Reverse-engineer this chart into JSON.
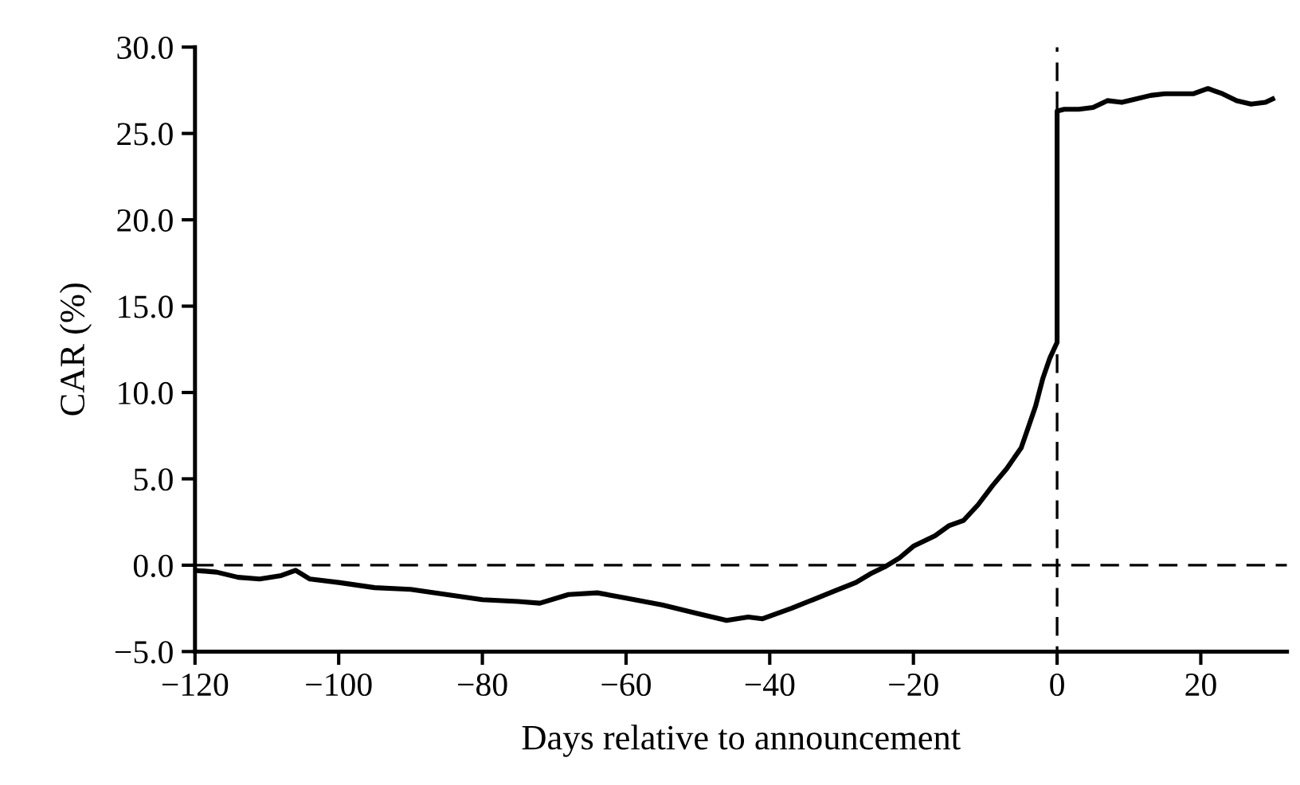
{
  "chart_data": {
    "type": "line",
    "xlabel": "Days relative to announcement",
    "ylabel": "CAR (%)",
    "x": [
      -120,
      -117,
      -114,
      -111,
      -108,
      -106,
      -104,
      -100,
      -95,
      -90,
      -85,
      -80,
      -75,
      -72,
      -68,
      -64,
      -60,
      -55,
      -50,
      -46,
      -43,
      -41,
      -37,
      -34,
      -31,
      -28,
      -26,
      -24,
      -22,
      -20,
      -17,
      -15,
      -13,
      -11,
      -9,
      -7,
      -5,
      -4,
      -3,
      -2,
      -1,
      0,
      0,
      1,
      3,
      5,
      7,
      9,
      11,
      13,
      15,
      17,
      19,
      21,
      23,
      25,
      27,
      29,
      30
    ],
    "series": [
      {
        "color": "#000000",
        "values": [
          -0.3,
          -0.4,
          -0.7,
          -0.8,
          -0.6,
          -0.3,
          -0.8,
          -1.0,
          -1.3,
          -1.4,
          -1.7,
          -2.0,
          -2.1,
          -2.2,
          -1.7,
          -1.6,
          -1.9,
          -2.3,
          -2.8,
          -3.2,
          -3.0,
          -3.1,
          -2.5,
          -2.0,
          -1.5,
          -1.0,
          -0.5,
          -0.1,
          0.4,
          1.1,
          1.7,
          2.3,
          2.6,
          3.5,
          4.6,
          5.6,
          6.8,
          8.0,
          9.2,
          10.8,
          12.0,
          12.9,
          26.3,
          26.4,
          26.4,
          26.5,
          26.9,
          26.8,
          27.0,
          27.2,
          27.3,
          27.3,
          27.3,
          27.6,
          27.3,
          26.9,
          26.7,
          26.8,
          27.0
        ]
      }
    ],
    "xlim": [
      -120,
      32
    ],
    "xticks": [
      {
        "value": -120,
        "label": "−120"
      },
      {
        "value": -100,
        "label": "−100"
      },
      {
        "value": -80,
        "label": "−80"
      },
      {
        "value": -60,
        "label": "−60"
      },
      {
        "value": -40,
        "label": "−40"
      },
      {
        "value": -20,
        "label": "−20"
      },
      0,
      20
    ],
    "ylim": [
      -5,
      30
    ],
    "yticks": [
      {
        "value": -5,
        "label": "−5.0"
      },
      {
        "value": 0,
        "label": "0.0"
      },
      {
        "value": 5,
        "label": "5.0"
      },
      {
        "value": 10,
        "label": "10.0"
      },
      {
        "value": 15,
        "label": "15.0"
      },
      {
        "value": 20,
        "label": "20.0"
      },
      {
        "value": 25,
        "label": "25.0"
      },
      {
        "value": 30,
        "label": "30.0"
      }
    ],
    "ref_lines": [
      {
        "axis": "y",
        "value": 0,
        "label": null,
        "color": "#000000",
        "line_style": "dashed"
      },
      {
        "axis": "x",
        "value": 0,
        "label": null,
        "color": "#000000",
        "line_style": "dashed"
      }
    ],
    "grid": false,
    "legend": false,
    "marker": "none",
    "line_style": "solid"
  }
}
